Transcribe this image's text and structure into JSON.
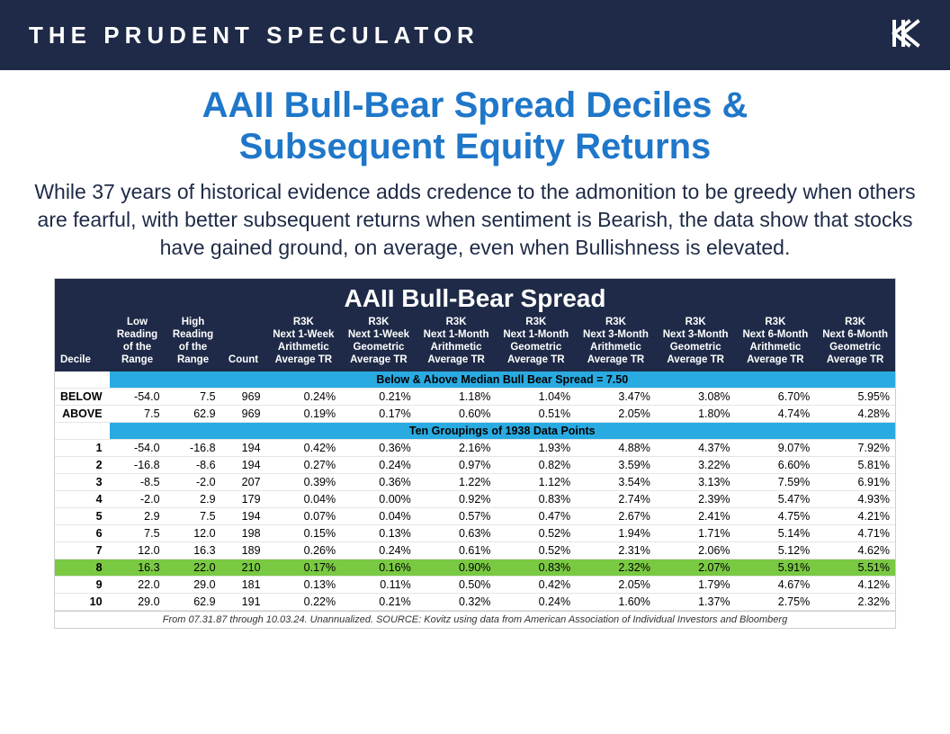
{
  "header": {
    "brand": "THE PRUDENT SPECULATOR"
  },
  "title": {
    "line1": "AAII Bull-Bear Spread Deciles &",
    "line2": "Subsequent Equity Returns",
    "color": "#1f77c9"
  },
  "subtitle": "While 37 years of historical evidence adds credence to the admonition to be greedy when others are fearful, with better subsequent returns when sentiment is Bearish, the data show that stocks have gained ground, on average, even when Bullishness is elevated.",
  "table": {
    "title": "AAII Bull-Bear Spread",
    "columns": [
      "Decile",
      "Low Reading of the Range",
      "High Reading of the Range",
      "Count",
      "R3K Next 1-Week Arithmetic Average TR",
      "R3K Next 1-Week Geometric Average TR",
      "R3K Next 1-Month Arithmetic Average TR",
      "R3K Next 1-Month Geometric Average TR",
      "R3K Next 3-Month Arithmetic Average TR",
      "R3K Next 3-Month Geometric Average TR",
      "R3K Next 6-Month Arithmetic Average TR",
      "R3K Next 6-Month Geometric Average TR"
    ],
    "section1_label": "Below & Above Median Bull Bear Spread = 7.50",
    "below_above": [
      {
        "decile": "BELOW",
        "low": "-54.0",
        "high": "7.5",
        "count": "969",
        "w1a": "0.24%",
        "w1g": "0.21%",
        "m1a": "1.18%",
        "m1g": "1.04%",
        "m3a": "3.47%",
        "m3g": "3.08%",
        "m6a": "6.70%",
        "m6g": "5.95%"
      },
      {
        "decile": "ABOVE",
        "low": "7.5",
        "high": "62.9",
        "count": "969",
        "w1a": "0.19%",
        "w1g": "0.17%",
        "m1a": "0.60%",
        "m1g": "0.51%",
        "m3a": "2.05%",
        "m3g": "1.80%",
        "m6a": "4.74%",
        "m6g": "4.28%"
      }
    ],
    "section2_label": "Ten Groupings of 1938 Data Points",
    "deciles": [
      {
        "decile": "1",
        "low": "-54.0",
        "high": "-16.8",
        "count": "194",
        "w1a": "0.42%",
        "w1g": "0.36%",
        "m1a": "2.16%",
        "m1g": "1.93%",
        "m3a": "4.88%",
        "m3g": "4.37%",
        "m6a": "9.07%",
        "m6g": "7.92%",
        "hl": false
      },
      {
        "decile": "2",
        "low": "-16.8",
        "high": "-8.6",
        "count": "194",
        "w1a": "0.27%",
        "w1g": "0.24%",
        "m1a": "0.97%",
        "m1g": "0.82%",
        "m3a": "3.59%",
        "m3g": "3.22%",
        "m6a": "6.60%",
        "m6g": "5.81%",
        "hl": false
      },
      {
        "decile": "3",
        "low": "-8.5",
        "high": "-2.0",
        "count": "207",
        "w1a": "0.39%",
        "w1g": "0.36%",
        "m1a": "1.22%",
        "m1g": "1.12%",
        "m3a": "3.54%",
        "m3g": "3.13%",
        "m6a": "7.59%",
        "m6g": "6.91%",
        "hl": false
      },
      {
        "decile": "4",
        "low": "-2.0",
        "high": "2.9",
        "count": "179",
        "w1a": "0.04%",
        "w1g": "0.00%",
        "m1a": "0.92%",
        "m1g": "0.83%",
        "m3a": "2.74%",
        "m3g": "2.39%",
        "m6a": "5.47%",
        "m6g": "4.93%",
        "hl": false
      },
      {
        "decile": "5",
        "low": "2.9",
        "high": "7.5",
        "count": "194",
        "w1a": "0.07%",
        "w1g": "0.04%",
        "m1a": "0.57%",
        "m1g": "0.47%",
        "m3a": "2.67%",
        "m3g": "2.41%",
        "m6a": "4.75%",
        "m6g": "4.21%",
        "hl": false
      },
      {
        "decile": "6",
        "low": "7.5",
        "high": "12.0",
        "count": "198",
        "w1a": "0.15%",
        "w1g": "0.13%",
        "m1a": "0.63%",
        "m1g": "0.52%",
        "m3a": "1.94%",
        "m3g": "1.71%",
        "m6a": "5.14%",
        "m6g": "4.71%",
        "hl": false
      },
      {
        "decile": "7",
        "low": "12.0",
        "high": "16.3",
        "count": "189",
        "w1a": "0.26%",
        "w1g": "0.24%",
        "m1a": "0.61%",
        "m1g": "0.52%",
        "m3a": "2.31%",
        "m3g": "2.06%",
        "m6a": "5.12%",
        "m6g": "4.62%",
        "hl": false
      },
      {
        "decile": "8",
        "low": "16.3",
        "high": "22.0",
        "count": "210",
        "w1a": "0.17%",
        "w1g": "0.16%",
        "m1a": "0.90%",
        "m1g": "0.83%",
        "m3a": "2.32%",
        "m3g": "2.07%",
        "m6a": "5.91%",
        "m6g": "5.51%",
        "hl": true
      },
      {
        "decile": "9",
        "low": "22.0",
        "high": "29.0",
        "count": "181",
        "w1a": "0.13%",
        "w1g": "0.11%",
        "m1a": "0.50%",
        "m1g": "0.42%",
        "m3a": "2.05%",
        "m3g": "1.79%",
        "m6a": "4.67%",
        "m6g": "4.12%",
        "hl": false
      },
      {
        "decile": "10",
        "low": "29.0",
        "high": "62.9",
        "count": "191",
        "w1a": "0.22%",
        "w1g": "0.21%",
        "m1a": "0.32%",
        "m1g": "0.24%",
        "m3a": "1.60%",
        "m3g": "1.37%",
        "m6a": "2.75%",
        "m6g": "2.32%",
        "hl": false
      }
    ],
    "footnote": "From 07.31.87 through 10.03.24. Unannualized. SOURCE: Kovitz using data from American Association of Individual Investors and Bloomberg",
    "colors": {
      "header_bg": "#1e2a47",
      "section_bg": "#29abe2",
      "highlight_bg": "#7ac943"
    }
  }
}
